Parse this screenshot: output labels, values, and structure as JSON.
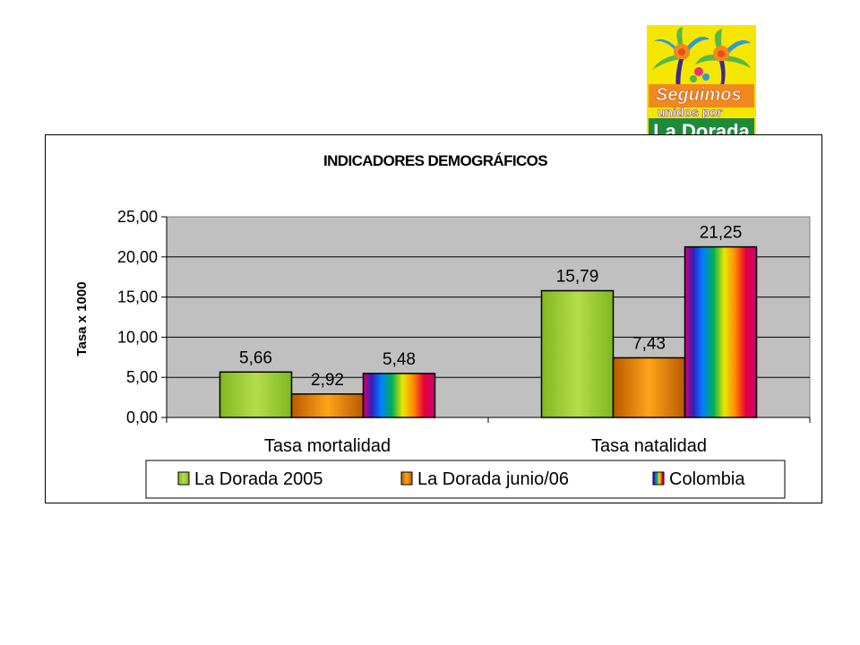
{
  "logo": {
    "line1": "Seguimos",
    "line2": "unidos por",
    "line3": "La Dorada"
  },
  "chart_data": {
    "type": "bar",
    "title": "INDICADORES DEMOGRÁFICOS",
    "xlabel": "",
    "ylabel": "Tasa x 1000",
    "categories": [
      "Tasa mortalidad",
      "Tasa natalidad"
    ],
    "series": [
      {
        "name": "La Dorada 2005",
        "values": [
          5.66,
          15.79
        ],
        "labels": [
          "5,66",
          "15,79"
        ],
        "color": "#99cc33"
      },
      {
        "name": "La Dorada junio/06",
        "values": [
          2.92,
          7.43
        ],
        "labels": [
          "2,92",
          "7,43"
        ],
        "color": "#ff9900"
      },
      {
        "name": "Colombia",
        "values": [
          5.48,
          21.25
        ],
        "labels": [
          "5,48",
          "21,25"
        ],
        "color": "rainbow"
      }
    ],
    "ylim": [
      0,
      25
    ],
    "yticks": [
      0,
      5,
      10,
      15,
      20,
      25
    ],
    "ytick_labels": [
      "0,00",
      "5,00",
      "10,00",
      "15,00",
      "20,00",
      "25,00"
    ],
    "grid": true,
    "plot_background": "#c0c0c0",
    "legend_position": "bottom"
  }
}
